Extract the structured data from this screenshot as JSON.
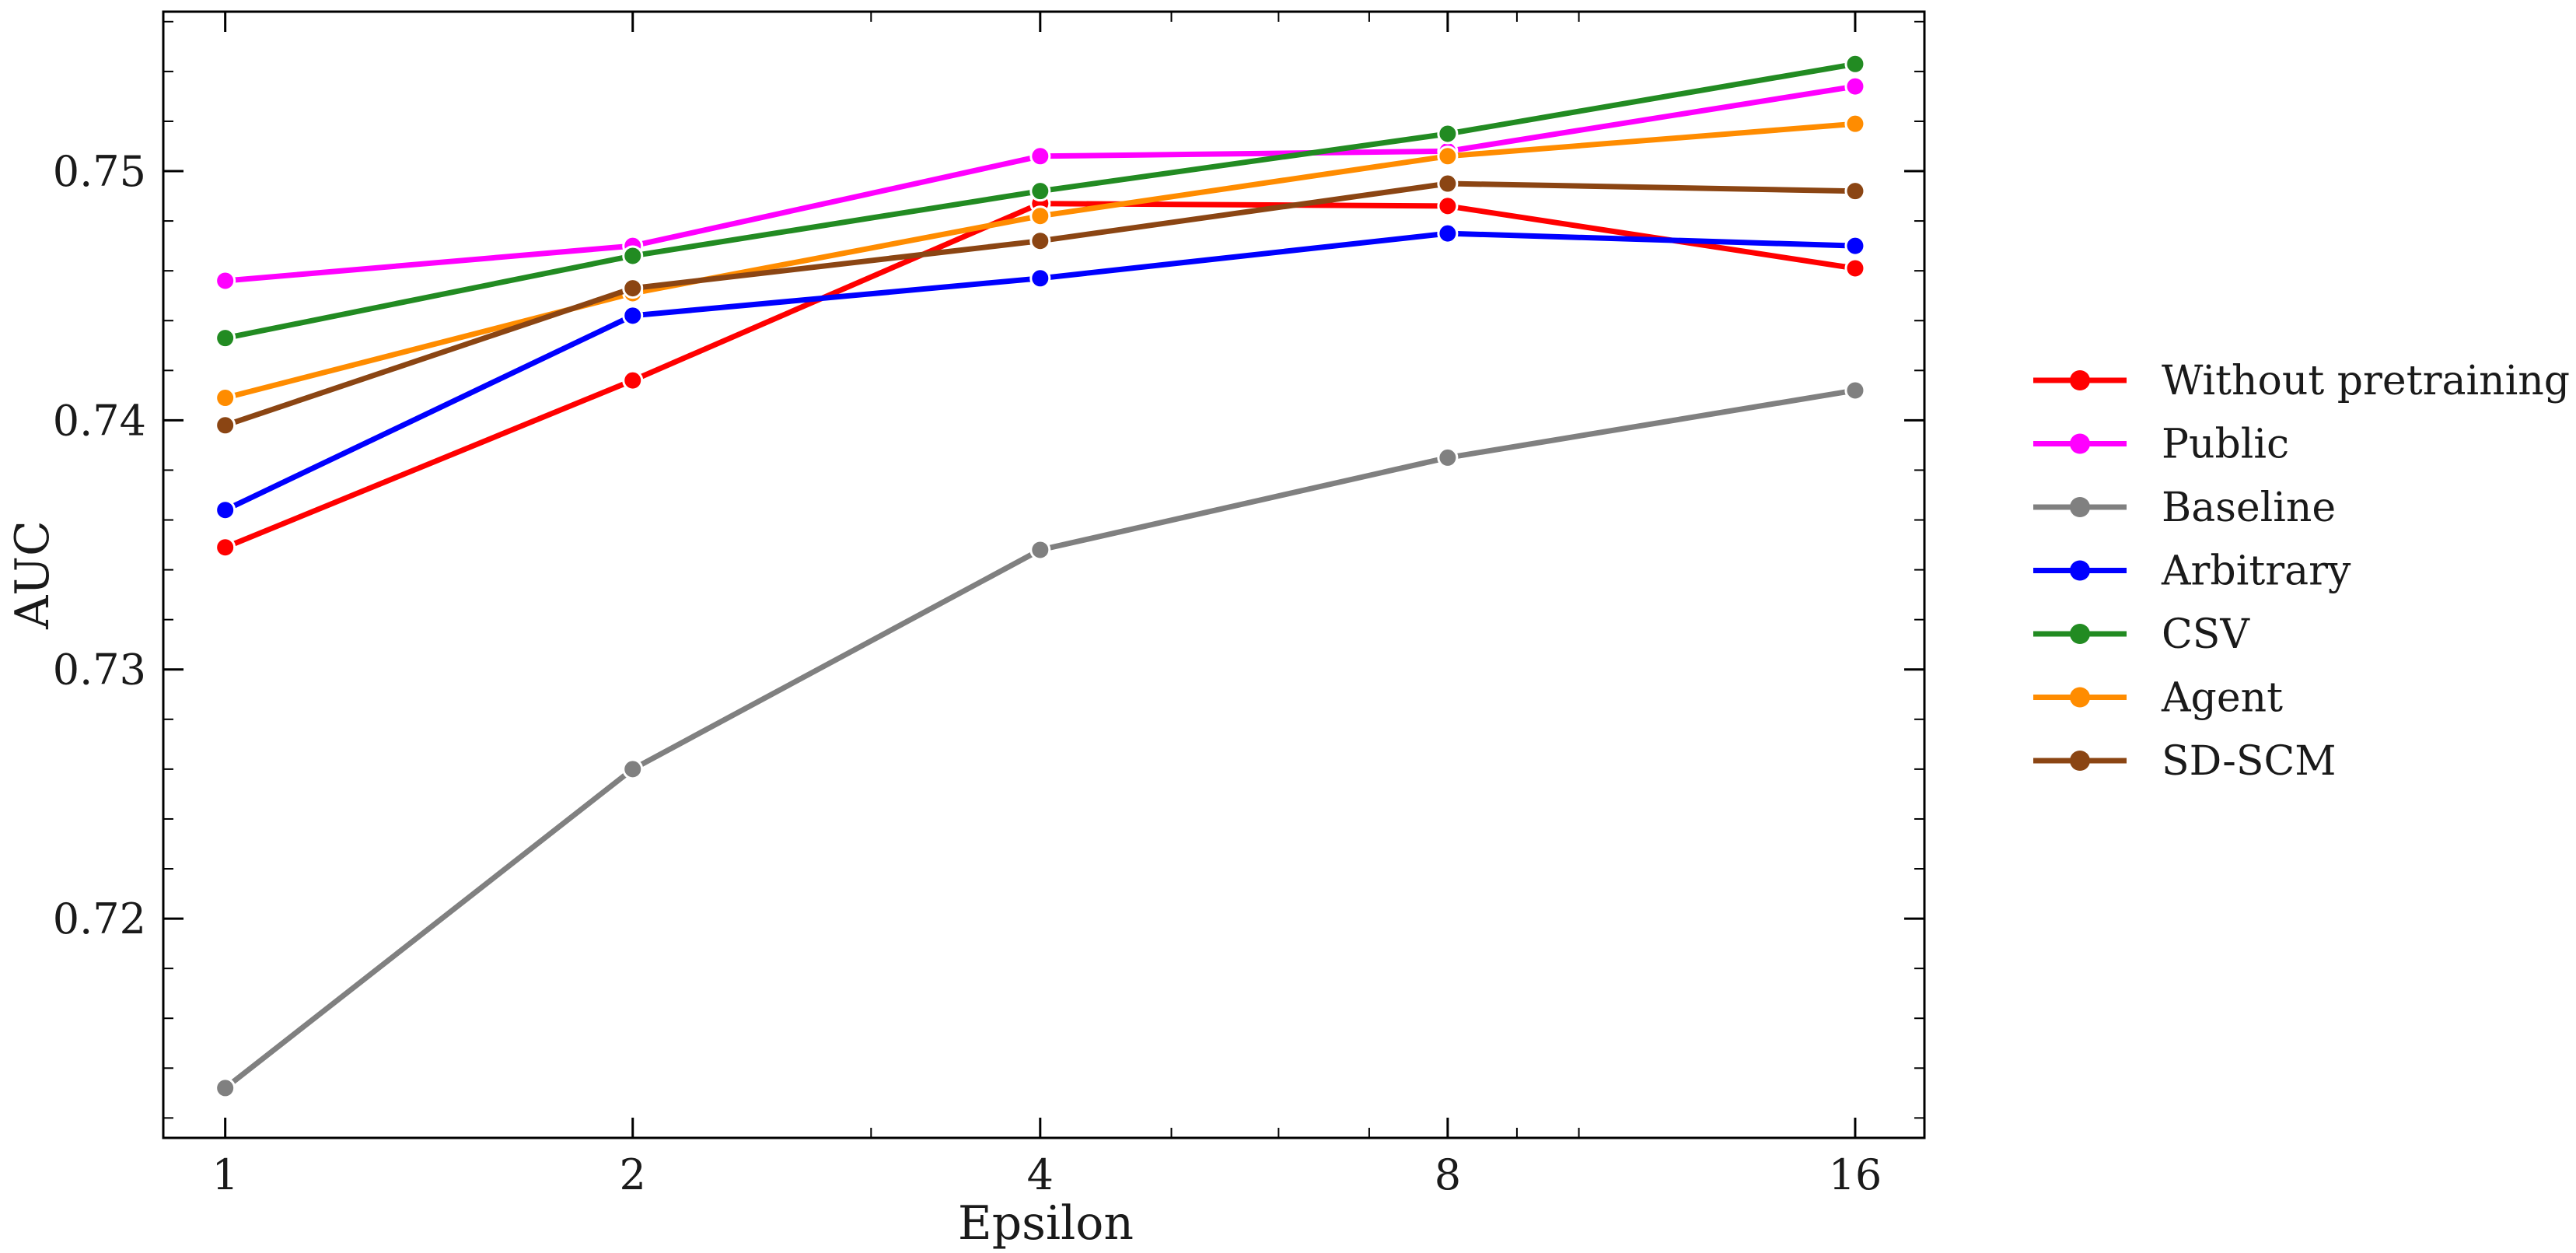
{
  "chart_data": {
    "type": "line",
    "title": "",
    "xlabel": "Epsilon",
    "ylabel": "AUC",
    "x_scale": "log2",
    "x": [
      1,
      2,
      4,
      8,
      16
    ],
    "x_tick_labels": [
      "1",
      "2",
      "4",
      "8",
      "16"
    ],
    "y_ticks": [
      0.72,
      0.73,
      0.74,
      0.75
    ],
    "y_tick_labels": [
      "0.72",
      "0.73",
      "0.74",
      "0.75"
    ],
    "xlim": [
      0.9,
      18
    ],
    "ylim": [
      0.7112,
      0.7564
    ],
    "grid": false,
    "legend_position": "right-outside",
    "series": [
      {
        "name": "Without pretraining",
        "color": "#ff0000",
        "values": [
          0.7349,
          0.7416,
          0.7487,
          0.7486,
          0.7461
        ]
      },
      {
        "name": "Public",
        "color": "#ff00ff",
        "values": [
          0.7456,
          0.747,
          0.7506,
          0.7508,
          0.7534
        ]
      },
      {
        "name": "Baseline",
        "color": "#808080",
        "values": [
          0.7132,
          0.726,
          0.7348,
          0.7385,
          0.7412
        ]
      },
      {
        "name": "Arbitrary",
        "color": "#0000ff",
        "values": [
          0.7364,
          0.7442,
          0.7457,
          0.7475,
          0.747
        ]
      },
      {
        "name": "CSV",
        "color": "#228b22",
        "values": [
          0.7433,
          0.7466,
          0.7492,
          0.7515,
          0.7543
        ]
      },
      {
        "name": "Agent",
        "color": "#ff8c00",
        "values": [
          0.7409,
          0.7451,
          0.7482,
          0.7506,
          0.7519
        ]
      },
      {
        "name": "SD-SCM",
        "color": "#8b4513",
        "values": [
          0.7398,
          0.7453,
          0.7472,
          0.7495,
          0.7492
        ]
      }
    ]
  }
}
